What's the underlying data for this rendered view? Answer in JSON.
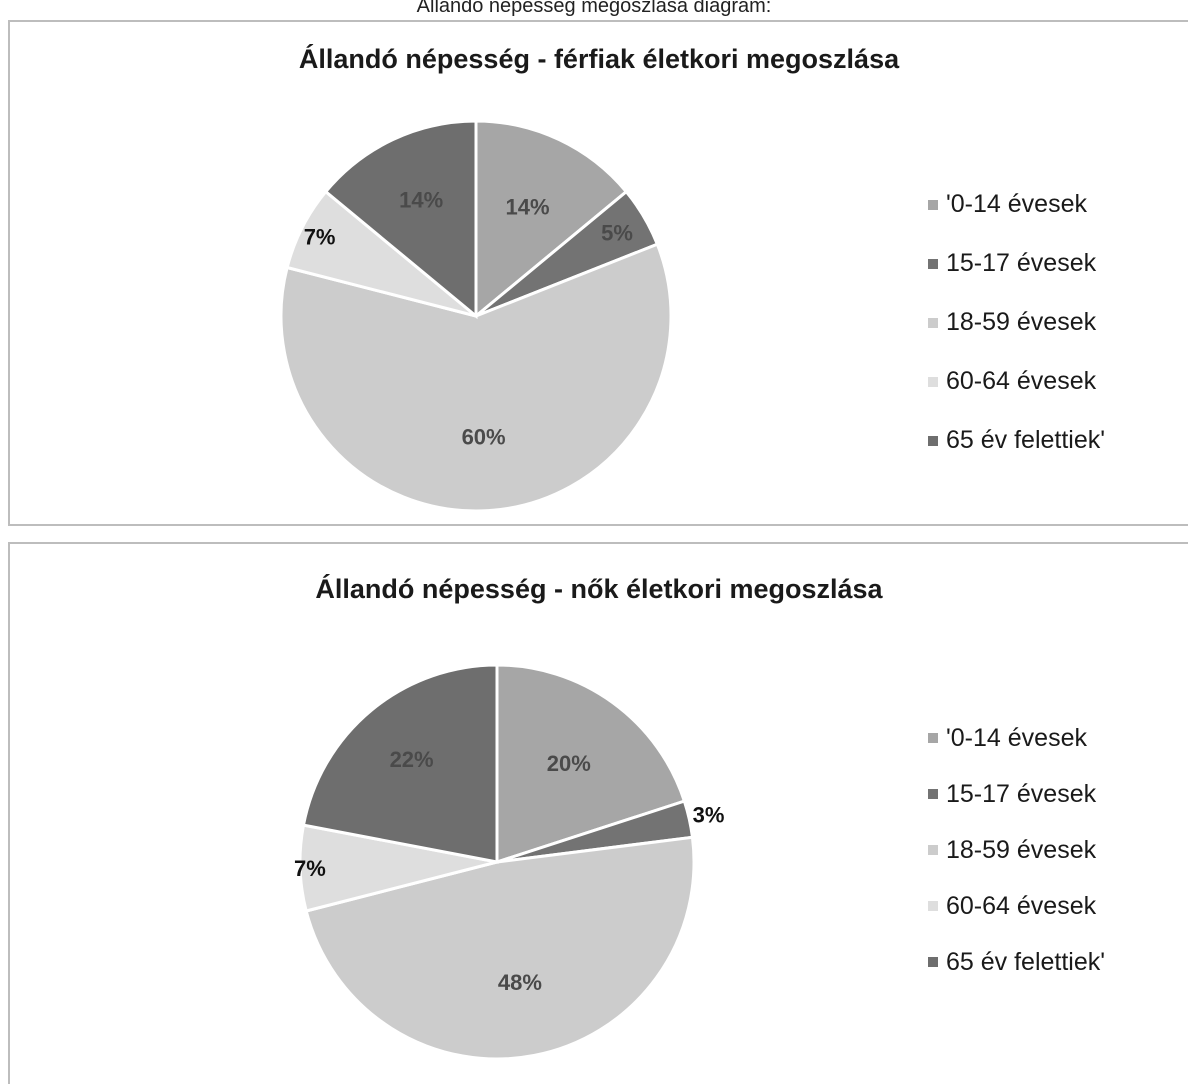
{
  "page_caption": "Állandó népesség megoszlása diagram:",
  "colors": {
    "0-14": "#a6a6a6",
    "15-17": "#737373",
    "18-59": "#cccccc",
    "60-64": "#dedede",
    "65+": "#6e6e6e",
    "slice_border": "#ffffff",
    "panel_border": "#bdbdbd"
  },
  "chart_data": [
    {
      "type": "pie",
      "title": "Állandó népesség - férfiak életkori megoszlása",
      "categories": [
        "'0-14 évesek",
        "15-17 évesek",
        "18-59 évesek",
        "60-64 évesek",
        "65 év felettiek'"
      ],
      "values": [
        14,
        5,
        60,
        7,
        14
      ],
      "labels": [
        "14%",
        "5%",
        "60%",
        "7%",
        "14%"
      ],
      "legend_position": "right"
    },
    {
      "type": "pie",
      "title": "Állandó népesség - nők életkori megoszlása",
      "categories": [
        "'0-14 évesek",
        "15-17 évesek",
        "18-59 évesek",
        "60-64 évesek",
        "65 év felettiek'"
      ],
      "values": [
        20,
        3,
        48,
        7,
        22
      ],
      "labels": [
        "20%",
        "3%",
        "48%",
        "7%",
        "22%"
      ],
      "legend_position": "right"
    }
  ]
}
